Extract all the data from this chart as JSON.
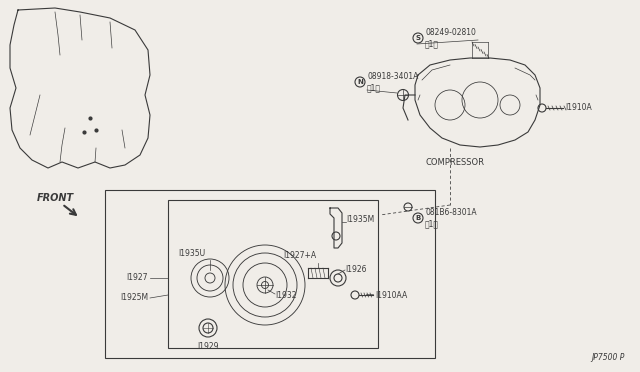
{
  "bg_color": "#f0ede8",
  "line_color": "#3a3a3a",
  "diagram_number": "JP7500 P",
  "labels": {
    "compressor": "COMPRESSOR",
    "front": "FRONT",
    "s_part": "08249-02810\n（1）",
    "n_part": "08918-3401A\n（1）",
    "b_part": "081B6-8301A\n（1）",
    "I1910A": "I1910A",
    "I1910AA": "I1910AA",
    "I1927": "I1927",
    "I1927A": "I1927+A",
    "I1929": "I1929",
    "I1932": "I1932",
    "I1935M": "I1935M",
    "I1935U": "I1935U",
    "I1926": "I1926",
    "I1925M": "I1925M"
  }
}
